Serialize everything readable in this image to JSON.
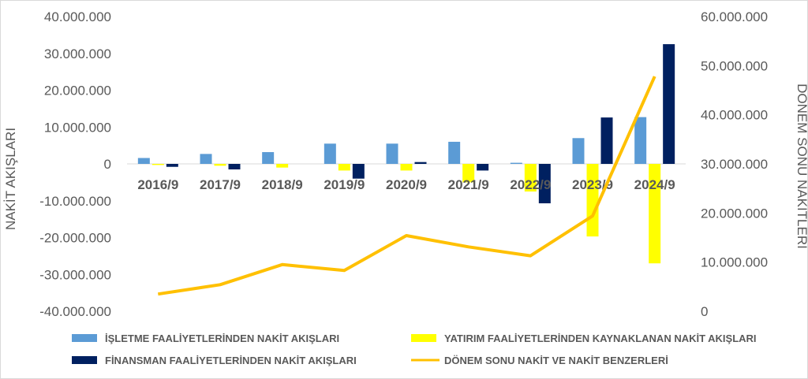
{
  "chart_data": {
    "type": "bar",
    "title": "",
    "categories": [
      "2016/9",
      "2017/9",
      "2018/9",
      "2019/9",
      "2020/9",
      "2021/9",
      "2022/9",
      "2023/9",
      "2024/9"
    ],
    "ylabel": "NAKİT AKIŞLARI",
    "y2label": "DÖNEM SONU NAKİTLERİ",
    "ylim": [
      -40000000,
      40000000
    ],
    "y2lim": [
      0,
      60000000
    ],
    "yticks": [
      "40.000.000",
      "30.000.000",
      "20.000.000",
      "10.000.000",
      "0",
      "-10.000.000",
      "-20.000.000",
      "-30.000.000",
      "-40.000.000"
    ],
    "y2ticks": [
      "60.000.000",
      "50.000.000",
      "40.000.000",
      "30.000.000",
      "20.000.000",
      "10.000.000",
      "0"
    ],
    "legend_position": "bottom",
    "grid": false,
    "series": [
      {
        "name": "İŞLETME FAALİYETLERİNDEN NAKİT AKIŞLARI",
        "type": "bar",
        "axis": "left",
        "color": "#5b9bd5",
        "values": [
          1600000,
          2700000,
          3200000,
          5500000,
          5500000,
          6000000,
          300000,
          7000000,
          12700000
        ]
      },
      {
        "name": "YATIRIM FAALİYETLERİNDEN KAYNAKLANAN NAKİT AKIŞLARI",
        "type": "bar",
        "axis": "left",
        "color": "#ffff00",
        "values": [
          -300000,
          -500000,
          -1000000,
          -1800000,
          -1800000,
          -5000000,
          -7500000,
          -19700000,
          -27000000
        ]
      },
      {
        "name": "FİNANSMAN FAALİYETLERİNDEN NAKİT AKIŞLARI",
        "type": "bar",
        "axis": "left",
        "color": "#002060",
        "values": [
          -800000,
          -1500000,
          0,
          -4000000,
          500000,
          -1800000,
          -10700000,
          12600000,
          32500000
        ]
      },
      {
        "name": "DÖNEM SONU NAKİT VE NAKİT BENZERLERİ",
        "type": "line",
        "axis": "right",
        "color": "#ffc000",
        "values": [
          3500000,
          5400000,
          9500000,
          8300000,
          15400000,
          13100000,
          11300000,
          19400000,
          47800000
        ]
      }
    ]
  }
}
